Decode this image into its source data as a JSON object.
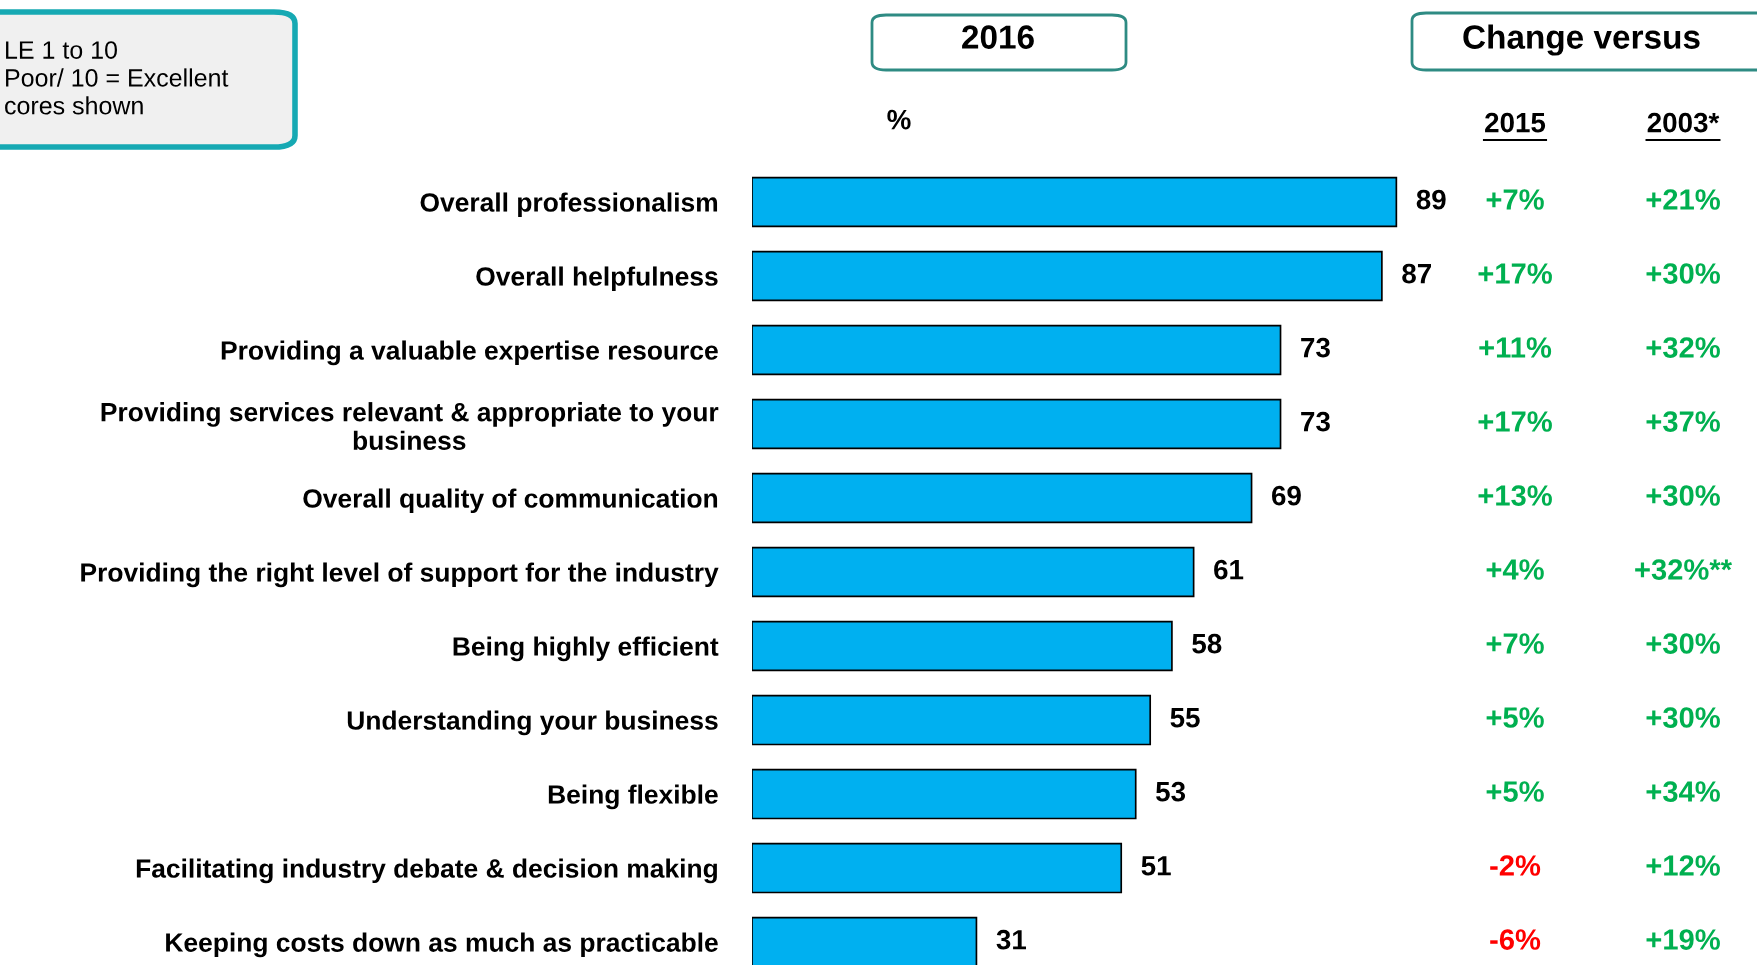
{
  "chart_data": [
    {
      "type": "bar",
      "orientation": "horizontal",
      "data_labels": true,
      "tick_labels": "y",
      "title": "2016",
      "categories": [
        "Overall professionalism",
        "Overall helpfulness",
        "Providing a valuable expertise resource",
        "Providing services relevant & appropriate to your\nbusiness",
        "Overall quality of communication",
        "Providing the right level of support for the industry",
        "Being highly efficient",
        "Understanding your business",
        "Being flexible",
        "Facilitating industry debate & decision making",
        "Keeping costs down as much as practicable"
      ],
      "series": [
        {
          "color": "#00b0f0",
          "values": [
            89,
            87,
            73,
            73,
            69,
            61,
            58,
            55,
            53,
            51,
            31
          ]
        }
      ],
      "annotations": [
        "LE 1 to 10\nPoor/ 10 = Excellent\ncores shown",
        "%",
        "Change versus"
      ]
    },
    {
      "type": "other",
      "title": "2015",
      "categories": [
        null,
        null,
        null,
        null,
        null,
        null,
        null,
        null,
        null,
        null,
        null
      ],
      "value_labels": [
        "+7%",
        "+17%",
        "+11%",
        "+17%",
        "+13%",
        "+4%",
        "+7%",
        "+5%",
        "+5%",
        "-2%",
        "-6%"
      ],
      "colors": [
        "#00b050",
        "#00b050",
        "#00b050",
        "#00b050",
        "#00b050",
        "#00b050",
        "#00b050",
        "#00b050",
        "#00b050",
        "#ff0000",
        "#ff0000"
      ]
    },
    {
      "type": "other",
      "title": "2003*",
      "categories": [
        null,
        null,
        null,
        null,
        null,
        null,
        null,
        null,
        null,
        null,
        null
      ],
      "value_labels": [
        "+21%",
        "+30%",
        "+32%",
        "+37%",
        "+30%",
        "+32%**",
        "+30%",
        "+30%",
        "+34%",
        "+12%",
        "+19%"
      ],
      "colors": [
        "#00b050",
        "#00b050",
        "#00b050",
        "#00b050",
        "#00b050",
        "#00b050",
        "#00b050",
        "#00b050",
        "#00b050",
        "#00b050",
        "#00b050"
      ]
    }
  ]
}
